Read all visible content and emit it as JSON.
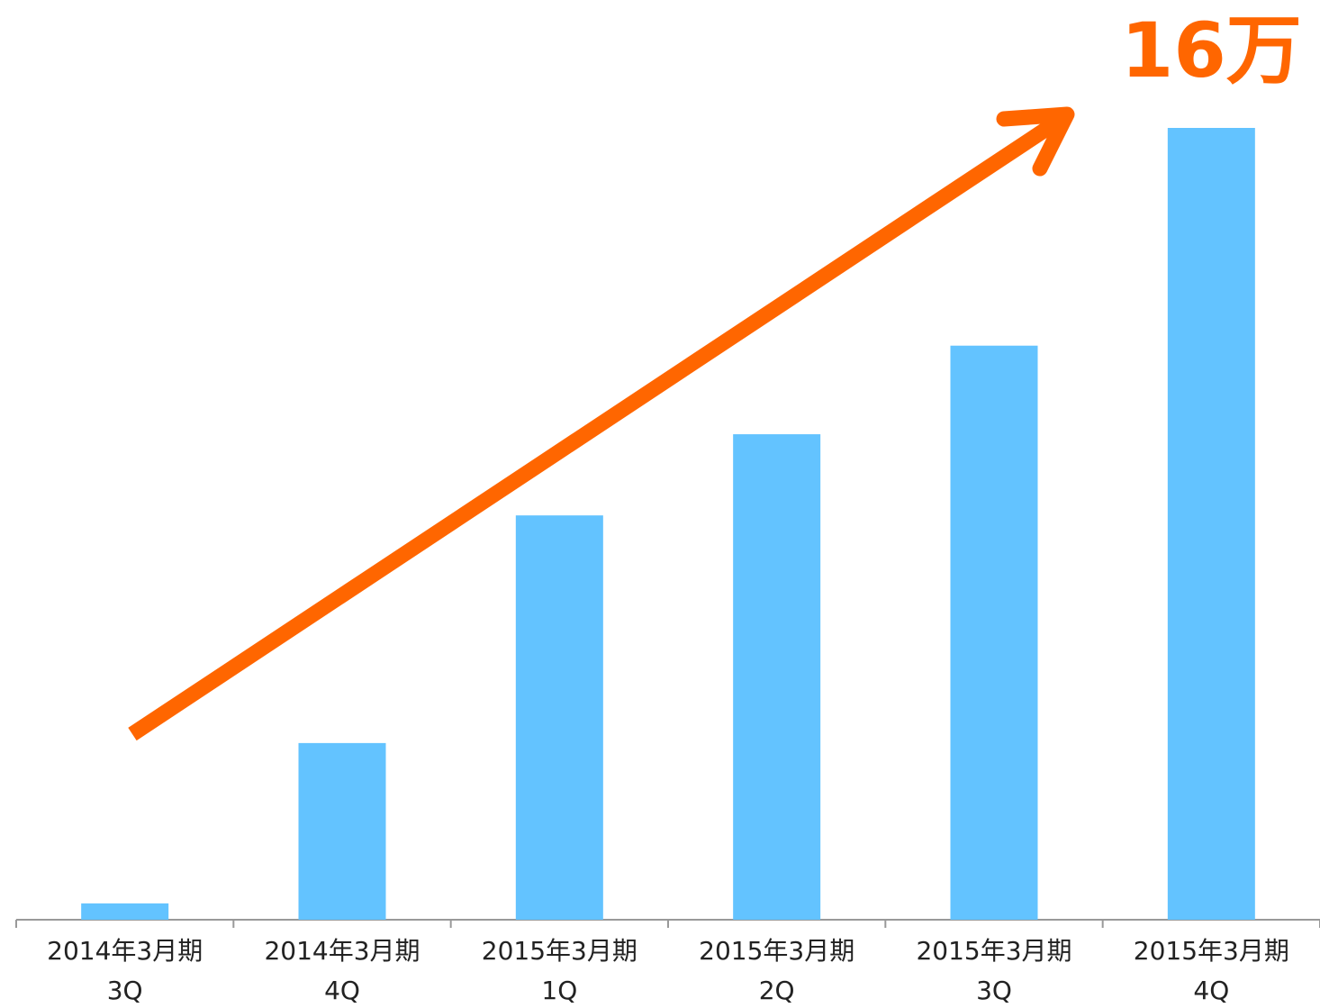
{
  "chart_data": {
    "type": "bar",
    "categories": [
      [
        "2014年3月期",
        "3Q"
      ],
      [
        "2014年3月期",
        "4Q"
      ],
      [
        "2015年3月期",
        "1Q"
      ],
      [
        "2015年3月期",
        "2Q"
      ],
      [
        "2015年3月期",
        "3Q"
      ],
      [
        "2015年3月期",
        "4Q"
      ]
    ],
    "values": [
      0.33,
      3.57,
      8.17,
      9.81,
      11.6,
      16
    ],
    "value_labels": [
      null,
      null,
      null,
      null,
      null,
      "16万"
    ],
    "color": "#63c3ff",
    "label_color": "#ff6600",
    "ylim": [
      0,
      16
    ],
    "grid": false
  }
}
